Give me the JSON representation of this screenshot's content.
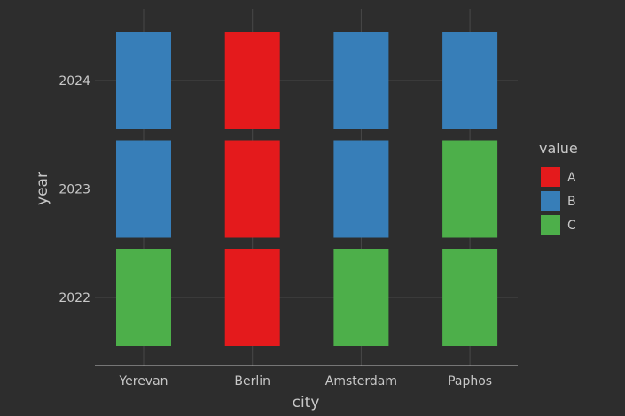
{
  "chart_data": {
    "type": "heatmap",
    "xlabel": "city",
    "ylabel": "year",
    "x_categories": [
      "Yerevan",
      "Berlin",
      "Amsterdam",
      "Paphos"
    ],
    "y_categories": [
      "2022",
      "2023",
      "2024"
    ],
    "cells": [
      {
        "city": "Yerevan",
        "year": "2024",
        "value": "B"
      },
      {
        "city": "Berlin",
        "year": "2024",
        "value": "A"
      },
      {
        "city": "Amsterdam",
        "year": "2024",
        "value": "B"
      },
      {
        "city": "Paphos",
        "year": "2024",
        "value": "B"
      },
      {
        "city": "Yerevan",
        "year": "2023",
        "value": "B"
      },
      {
        "city": "Berlin",
        "year": "2023",
        "value": "A"
      },
      {
        "city": "Amsterdam",
        "year": "2023",
        "value": "B"
      },
      {
        "city": "Paphos",
        "year": "2023",
        "value": "C"
      },
      {
        "city": "Yerevan",
        "year": "2022",
        "value": "C"
      },
      {
        "city": "Berlin",
        "year": "2022",
        "value": "A"
      },
      {
        "city": "Amsterdam",
        "year": "2022",
        "value": "C"
      },
      {
        "city": "Paphos",
        "year": "2022",
        "value": "C"
      }
    ],
    "legend": {
      "title": "value",
      "position": "right",
      "entries": [
        {
          "label": "A",
          "color": "#e41a1c"
        },
        {
          "label": "B",
          "color": "#377eb8"
        },
        {
          "label": "C",
          "color": "#4daf4a"
        }
      ]
    },
    "grid": true,
    "colors": {
      "background": "#2d2d2d",
      "grid": "#484848",
      "axis_line": "#bfbfbf",
      "text": "#c8c8c8"
    }
  }
}
